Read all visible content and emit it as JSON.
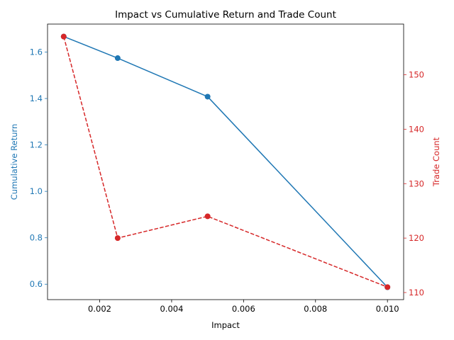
{
  "chart_data": {
    "type": "line",
    "title": "Impact vs Cumulative Return and Trade Count",
    "xlabel": "Impact",
    "x": [
      0.001,
      0.0025,
      0.005,
      0.01
    ],
    "xlim": [
      0.00055,
      0.01045
    ],
    "xticks": [
      0.002,
      0.004,
      0.006,
      0.008,
      0.01
    ],
    "xtick_labels": [
      "0.002",
      "0.004",
      "0.006",
      "0.008",
      "0.010"
    ],
    "grid": false,
    "y_left": {
      "label": "Cumulative Return",
      "color": "#1f77b4",
      "lim": [
        0.5336,
        1.7206
      ],
      "ticks": [
        0.6,
        0.8,
        1.0,
        1.2,
        1.4,
        1.6
      ],
      "tick_labels": [
        "0.6",
        "0.8",
        "1.0",
        "1.2",
        "1.4",
        "1.6"
      ]
    },
    "y_right": {
      "label": "Trade Count",
      "color": "#d62728",
      "lim": [
        108.7,
        159.3
      ],
      "ticks": [
        110,
        120,
        130,
        140,
        150
      ],
      "tick_labels": [
        "110",
        "120",
        "130",
        "140",
        "150"
      ]
    },
    "series": [
      {
        "axis": "left",
        "color": "#1f77b4",
        "style": "solid",
        "marker": "circle",
        "values": [
          1.667,
          1.574,
          1.408,
          0.587
        ]
      },
      {
        "axis": "right",
        "color": "#d62728",
        "style": "dashed",
        "marker": "circle",
        "values": [
          157,
          120,
          124,
          111
        ]
      }
    ]
  }
}
